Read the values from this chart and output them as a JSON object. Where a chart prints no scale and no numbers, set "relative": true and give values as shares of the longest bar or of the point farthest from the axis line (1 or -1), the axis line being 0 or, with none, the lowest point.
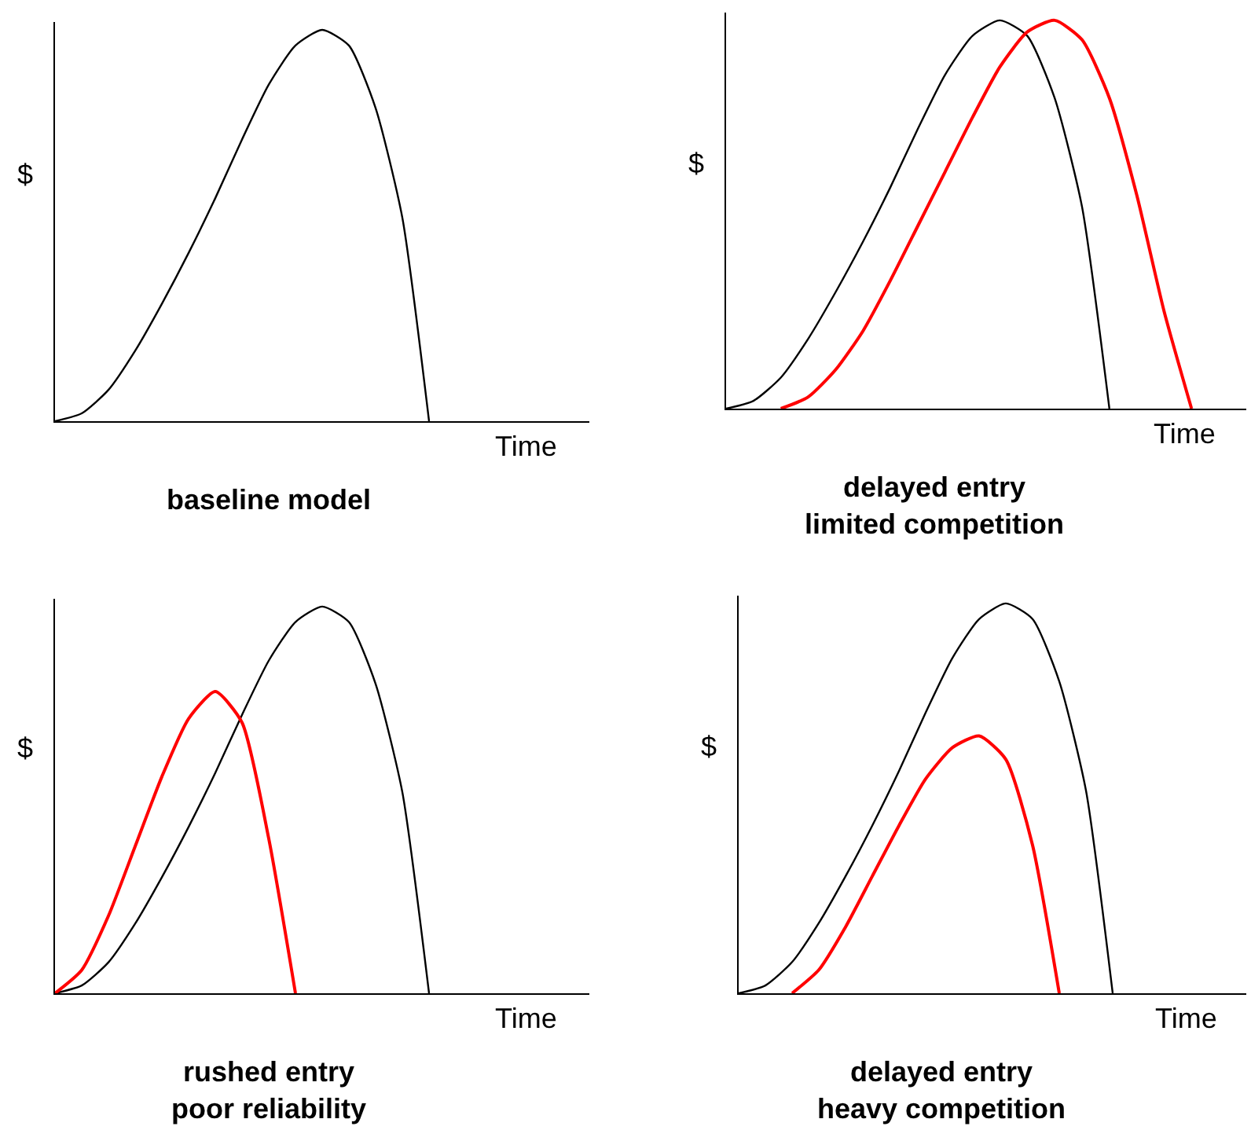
{
  "chart_data": [
    {
      "type": "line",
      "relative": true,
      "title": "baseline model",
      "xlabel": "Time",
      "ylabel": "$",
      "categories": [
        null,
        null,
        null,
        null,
        null,
        null,
        null,
        null,
        null,
        null,
        null,
        null,
        null,
        null,
        null,
        null,
        null,
        null,
        null,
        null,
        null
      ],
      "series": [
        {
          "color": "#000000",
          "values": [
            0,
            0.02,
            0.08,
            0.18,
            0.3,
            0.43,
            0.57,
            0.72,
            0.86,
            0.96,
            1.0,
            0.96,
            0.8,
            0.52,
            0,
            null,
            null,
            null,
            null,
            null,
            null
          ]
        }
      ]
    },
    {
      "type": "line",
      "relative": true,
      "title": "delayed entry\nlimited competition",
      "xlabel": "Time",
      "ylabel": "$",
      "categories": [
        null,
        null,
        null,
        null,
        null,
        null,
        null,
        null,
        null,
        null,
        null,
        null,
        null,
        null,
        null,
        null,
        null,
        null,
        null,
        null
      ],
      "series": [
        {
          "color": "#000000",
          "values": [
            0,
            0.02,
            0.08,
            0.18,
            0.3,
            0.43,
            0.57,
            0.72,
            0.86,
            0.96,
            1.0,
            0.96,
            0.8,
            0.52,
            0,
            null,
            null,
            null,
            null,
            null
          ]
        },
        {
          "color": "#ff0000",
          "values": [
            null,
            null,
            0,
            0.03,
            0.1,
            0.2,
            0.33,
            0.47,
            0.61,
            0.75,
            0.88,
            0.97,
            1.0,
            0.95,
            0.8,
            0.55,
            0.25,
            0,
            null,
            null
          ]
        }
      ]
    },
    {
      "type": "line",
      "relative": true,
      "title": "rushed entry\npoor reliability",
      "xlabel": "Time",
      "ylabel": "$",
      "categories": [
        null,
        null,
        null,
        null,
        null,
        null,
        null,
        null,
        null,
        null,
        null,
        null,
        null,
        null,
        null,
        null,
        null,
        null,
        null,
        null,
        null
      ],
      "series": [
        {
          "color": "#000000",
          "values": [
            0,
            0.02,
            0.08,
            0.18,
            0.3,
            0.43,
            0.57,
            0.72,
            0.86,
            0.96,
            1.0,
            0.96,
            0.8,
            0.52,
            0,
            null,
            null,
            null,
            null,
            null,
            null
          ]
        },
        {
          "color": "#ff0000",
          "values": [
            0,
            0.06,
            0.2,
            0.38,
            0.56,
            0.71,
            0.78,
            0.7,
            0.4,
            0,
            null,
            null,
            null,
            null,
            null,
            null,
            null,
            null,
            null,
            null,
            null
          ]
        }
      ]
    },
    {
      "type": "line",
      "relative": true,
      "title": "delayed entry\nheavy competition",
      "xlabel": "Time",
      "ylabel": "$",
      "categories": [
        null,
        null,
        null,
        null,
        null,
        null,
        null,
        null,
        null,
        null,
        null,
        null,
        null,
        null,
        null,
        null,
        null,
        null,
        null,
        null
      ],
      "series": [
        {
          "color": "#000000",
          "values": [
            0,
            0.02,
            0.08,
            0.18,
            0.3,
            0.43,
            0.57,
            0.72,
            0.86,
            0.96,
            1.0,
            0.96,
            0.8,
            0.52,
            0,
            null,
            null,
            null,
            null,
            null
          ]
        },
        {
          "color": "#ff0000",
          "values": [
            null,
            null,
            0,
            0.06,
            0.17,
            0.3,
            0.43,
            0.55,
            0.63,
            0.66,
            0.6,
            0.38,
            0,
            null,
            null,
            null,
            null,
            null,
            null,
            null
          ]
        }
      ]
    }
  ]
}
